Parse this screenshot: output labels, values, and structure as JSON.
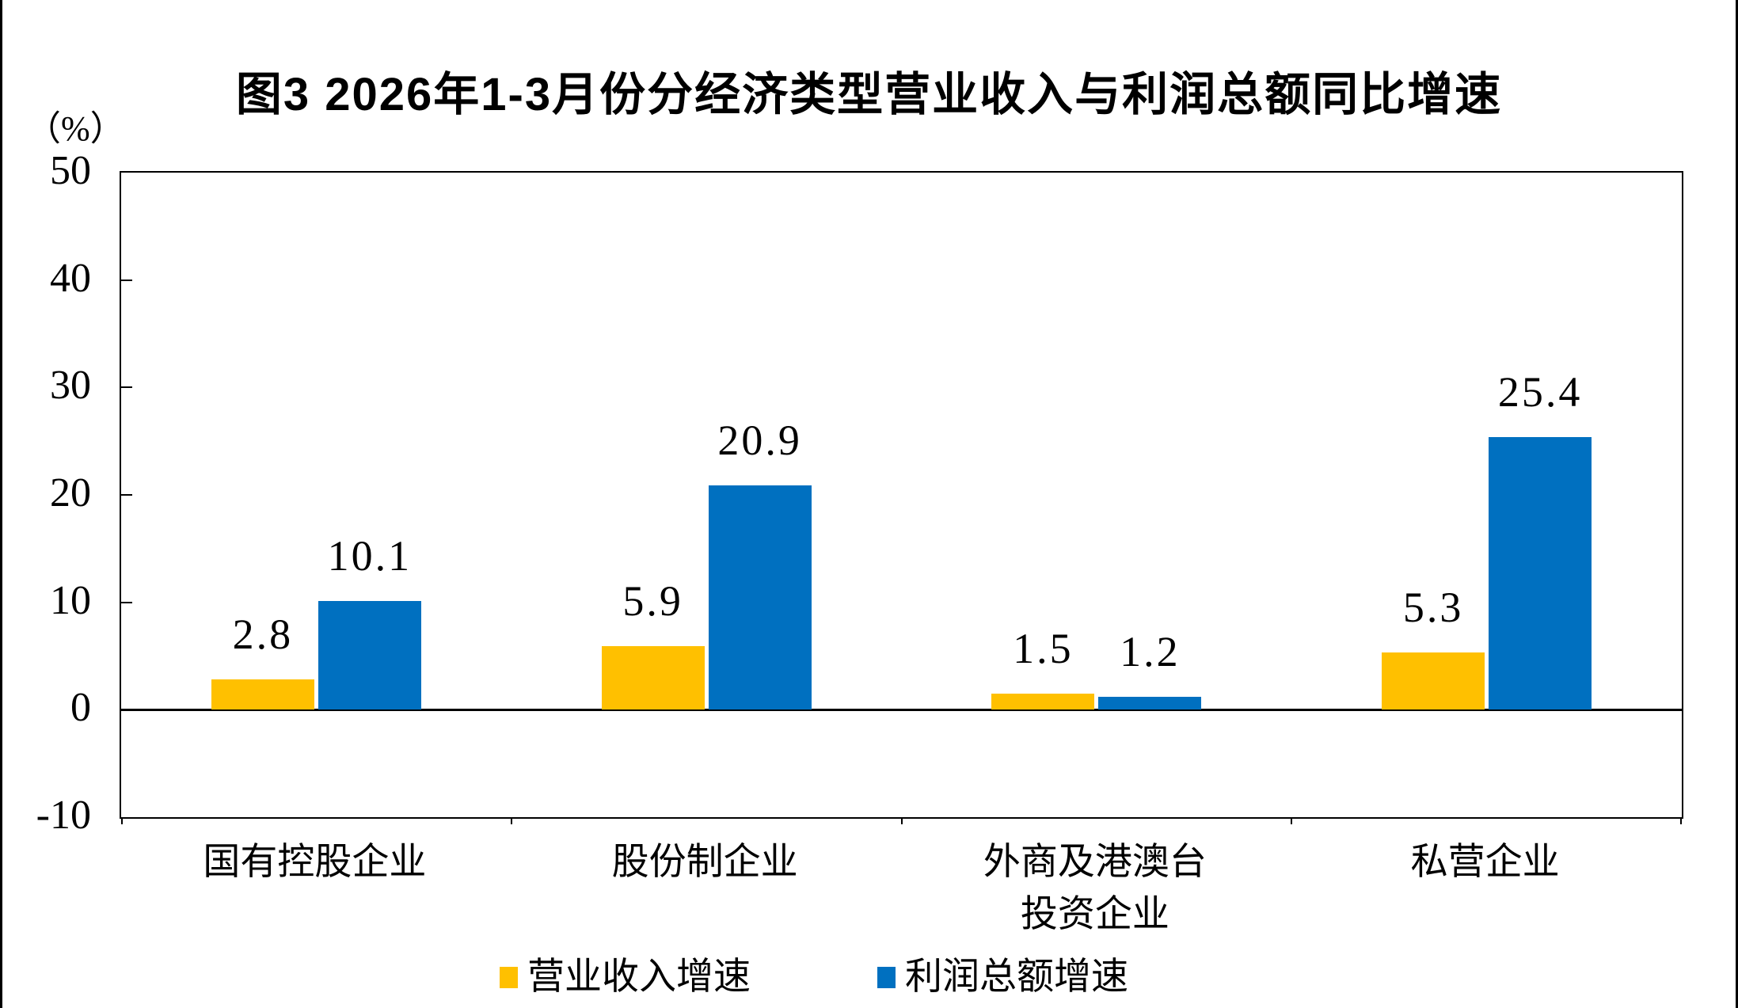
{
  "figure": {
    "title": "图3  2026年1-3月份分经济类型营业收入与利润总额同比增速",
    "unit_label": "（%）"
  },
  "chart_data": {
    "type": "bar",
    "title": "图3  2026年1-3月份分经济类型营业收入与利润总额同比增速",
    "ylabel": "（%）",
    "xlabel": "",
    "categories": [
      "国有控股企业",
      "股份制企业",
      "外商及港澳台\n投资企业",
      "私营企业"
    ],
    "series": [
      {
        "name": "营业收入增速",
        "color": "#FFC000",
        "values": [
          2.8,
          5.9,
          1.5,
          5.3
        ]
      },
      {
        "name": "利润总额增速",
        "color": "#0070C0",
        "values": [
          10.1,
          20.9,
          1.2,
          25.4
        ]
      }
    ],
    "ylim": [
      -10,
      50
    ],
    "yticks": [
      50,
      40,
      30,
      20,
      10,
      0,
      -10
    ],
    "value_label_decimals": 1,
    "grid": false,
    "legend_position": "bottom"
  }
}
